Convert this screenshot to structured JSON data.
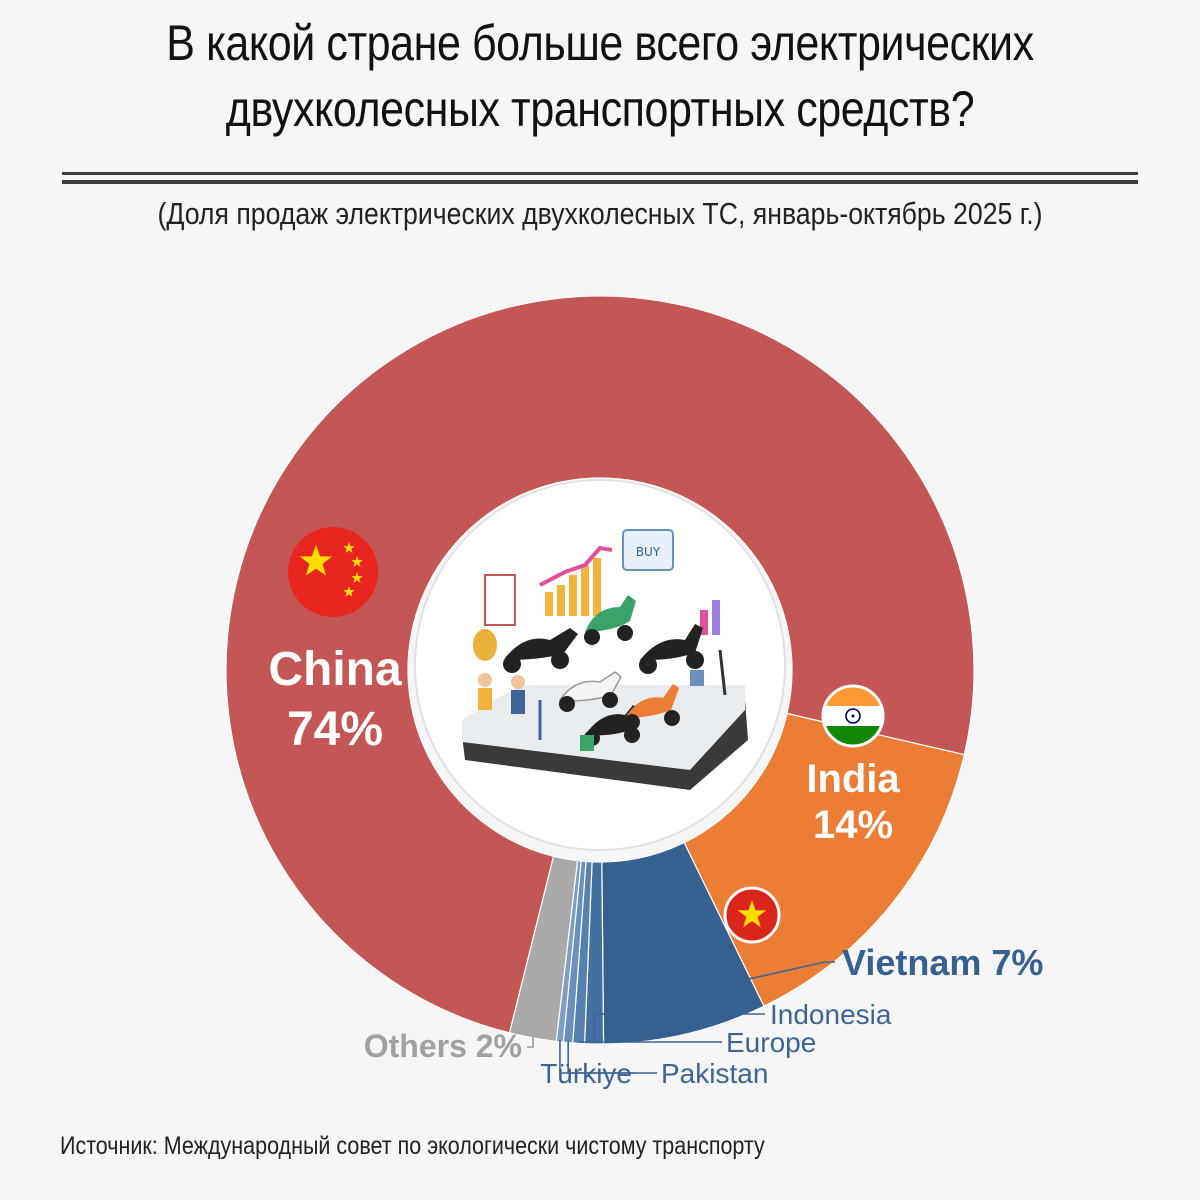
{
  "title_line1": "В какой стране больше всего электрических",
  "title_line2": "двухколесных транспортных средств?",
  "subtitle": "(Доля продаж электрических двухколесных ТС, январь-октябрь 2025 г.)",
  "source": "Источник: Международный совет по экологически чистому транспорту",
  "center_image": "electric-scooters-marketplace-illustration",
  "chart_data": {
    "type": "pie",
    "style": "donut",
    "unit": "%",
    "series": [
      {
        "name": "China",
        "value": 74,
        "label": "China",
        "value_label": "74%",
        "color": "#c45656",
        "flag": "china-flag-icon"
      },
      {
        "name": "India",
        "value": 14,
        "label": "India",
        "value_label": "14%",
        "color": "#ec7d35",
        "flag": "india-flag-icon"
      },
      {
        "name": "Vietnam",
        "value": 7,
        "label": "Vietnam 7%",
        "value_label": "",
        "color": "#35608f",
        "flag": "vietnam-flag-icon"
      },
      {
        "name": "Indonesia",
        "value": 0.8,
        "label": "Indonesia",
        "value_label": "",
        "color": "#4470a0"
      },
      {
        "name": "Europe",
        "value": 0.5,
        "label": "Europe",
        "value_label": "",
        "color": "#5680ae"
      },
      {
        "name": "Pakistan",
        "value": 0.4,
        "label": "Pakistan",
        "value_label": "",
        "color": "#6a90bb"
      },
      {
        "name": "Türkiye",
        "value": 0.3,
        "label": "Türkiye",
        "value_label": "",
        "color": "#7d9fc6"
      },
      {
        "name": "Others",
        "value": 2,
        "label": "Others 2%",
        "value_label": "",
        "color": "#a9a9a9"
      }
    ],
    "label_color_small": "#3d6494",
    "label_color_others": "#a0a0a0"
  }
}
